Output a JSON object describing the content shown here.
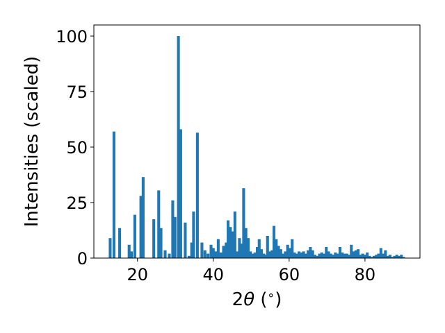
{
  "chart_data": {
    "type": "bar",
    "xlabel_parts": [
      "2",
      "θ",
      " (",
      "∘",
      ")"
    ],
    "ylabel": "Intensities (scaled)",
    "xlim": [
      8.5,
      94.5
    ],
    "ylim": [
      0,
      105
    ],
    "xticks": [
      20,
      40,
      60,
      80
    ],
    "yticks": [
      0,
      25,
      50,
      75,
      100
    ],
    "grid": false,
    "legend": "none",
    "bar_color": "#1f77b4",
    "bar_width": 0.75,
    "points": [
      {
        "x": 12.8,
        "y": 9
      },
      {
        "x": 13.8,
        "y": 57
      },
      {
        "x": 15.3,
        "y": 13.5
      },
      {
        "x": 17.8,
        "y": 6
      },
      {
        "x": 18.4,
        "y": 3
      },
      {
        "x": 19.3,
        "y": 19.5
      },
      {
        "x": 20.9,
        "y": 28
      },
      {
        "x": 21.5,
        "y": 36.5
      },
      {
        "x": 24.3,
        "y": 17.5
      },
      {
        "x": 25.6,
        "y": 30.5
      },
      {
        "x": 26.2,
        "y": 13.5
      },
      {
        "x": 27.3,
        "y": 3.5
      },
      {
        "x": 28.4,
        "y": 2
      },
      {
        "x": 29.3,
        "y": 26
      },
      {
        "x": 29.9,
        "y": 18.5
      },
      {
        "x": 30.8,
        "y": 100
      },
      {
        "x": 31.4,
        "y": 58
      },
      {
        "x": 32.6,
        "y": 16
      },
      {
        "x": 33.6,
        "y": 1
      },
      {
        "x": 34.3,
        "y": 7
      },
      {
        "x": 34.8,
        "y": 21
      },
      {
        "x": 35.8,
        "y": 56.5
      },
      {
        "x": 37.0,
        "y": 7
      },
      {
        "x": 37.8,
        "y": 3.5
      },
      {
        "x": 38.6,
        "y": 2
      },
      {
        "x": 39.4,
        "y": 6
      },
      {
        "x": 40.0,
        "y": 4.5
      },
      {
        "x": 40.6,
        "y": 3
      },
      {
        "x": 41.3,
        "y": 8.5
      },
      {
        "x": 42.0,
        "y": 2.5
      },
      {
        "x": 42.7,
        "y": 5.5
      },
      {
        "x": 43.4,
        "y": 7
      },
      {
        "x": 43.9,
        "y": 17
      },
      {
        "x": 44.5,
        "y": 14
      },
      {
        "x": 45.1,
        "y": 12
      },
      {
        "x": 45.7,
        "y": 21
      },
      {
        "x": 46.3,
        "y": 3
      },
      {
        "x": 46.9,
        "y": 9
      },
      {
        "x": 47.5,
        "y": 6.5
      },
      {
        "x": 48.0,
        "y": 31.5
      },
      {
        "x": 48.6,
        "y": 13.5
      },
      {
        "x": 49.2,
        "y": 9
      },
      {
        "x": 49.8,
        "y": 3
      },
      {
        "x": 50.4,
        "y": 2
      },
      {
        "x": 51.0,
        "y": 2.5
      },
      {
        "x": 51.6,
        "y": 5
      },
      {
        "x": 52.1,
        "y": 8.5
      },
      {
        "x": 52.7,
        "y": 4
      },
      {
        "x": 53.3,
        "y": 2
      },
      {
        "x": 53.9,
        "y": 1.5
      },
      {
        "x": 54.3,
        "y": 10
      },
      {
        "x": 54.9,
        "y": 3
      },
      {
        "x": 55.5,
        "y": 3.5
      },
      {
        "x": 56.0,
        "y": 14.5
      },
      {
        "x": 56.6,
        "y": 8.5
      },
      {
        "x": 57.2,
        "y": 5.5
      },
      {
        "x": 57.8,
        "y": 4
      },
      {
        "x": 58.4,
        "y": 2
      },
      {
        "x": 59.0,
        "y": 3
      },
      {
        "x": 59.6,
        "y": 6
      },
      {
        "x": 60.2,
        "y": 4.5
      },
      {
        "x": 60.8,
        "y": 8.5
      },
      {
        "x": 61.4,
        "y": 2.5
      },
      {
        "x": 62.0,
        "y": 2
      },
      {
        "x": 62.6,
        "y": 3
      },
      {
        "x": 63.2,
        "y": 2.5
      },
      {
        "x": 63.8,
        "y": 3
      },
      {
        "x": 64.4,
        "y": 2
      },
      {
        "x": 65.0,
        "y": 3.5
      },
      {
        "x": 65.6,
        "y": 5
      },
      {
        "x": 66.2,
        "y": 3.5
      },
      {
        "x": 66.8,
        "y": 1.5
      },
      {
        "x": 67.4,
        "y": 1
      },
      {
        "x": 68.0,
        "y": 2
      },
      {
        "x": 68.6,
        "y": 2.5
      },
      {
        "x": 69.2,
        "y": 2
      },
      {
        "x": 69.8,
        "y": 5
      },
      {
        "x": 70.4,
        "y": 3
      },
      {
        "x": 71.0,
        "y": 2
      },
      {
        "x": 71.6,
        "y": 1.5
      },
      {
        "x": 72.2,
        "y": 2.5
      },
      {
        "x": 72.8,
        "y": 2
      },
      {
        "x": 73.4,
        "y": 5
      },
      {
        "x": 74.0,
        "y": 2.5
      },
      {
        "x": 74.6,
        "y": 2
      },
      {
        "x": 75.2,
        "y": 2
      },
      {
        "x": 75.8,
        "y": 1.5
      },
      {
        "x": 76.4,
        "y": 6
      },
      {
        "x": 77.0,
        "y": 3
      },
      {
        "x": 77.6,
        "y": 3.5
      },
      {
        "x": 78.2,
        "y": 4
      },
      {
        "x": 78.8,
        "y": 1.5
      },
      {
        "x": 79.4,
        "y": 2
      },
      {
        "x": 80.0,
        "y": 1.5
      },
      {
        "x": 80.6,
        "y": 2.5
      },
      {
        "x": 81.2,
        "y": 1
      },
      {
        "x": 81.8,
        "y": 0.5
      },
      {
        "x": 82.4,
        "y": 1
      },
      {
        "x": 83.0,
        "y": 1.5
      },
      {
        "x": 83.6,
        "y": 2
      },
      {
        "x": 84.2,
        "y": 4.5
      },
      {
        "x": 84.8,
        "y": 2
      },
      {
        "x": 85.4,
        "y": 3.5
      },
      {
        "x": 86.0,
        "y": 1
      },
      {
        "x": 86.6,
        "y": 1.5
      },
      {
        "x": 87.2,
        "y": 0.5
      },
      {
        "x": 87.8,
        "y": 1
      },
      {
        "x": 88.4,
        "y": 1.5
      },
      {
        "x": 89.0,
        "y": 1
      },
      {
        "x": 89.6,
        "y": 1.5
      },
      {
        "x": 90.2,
        "y": 0.5
      }
    ]
  }
}
